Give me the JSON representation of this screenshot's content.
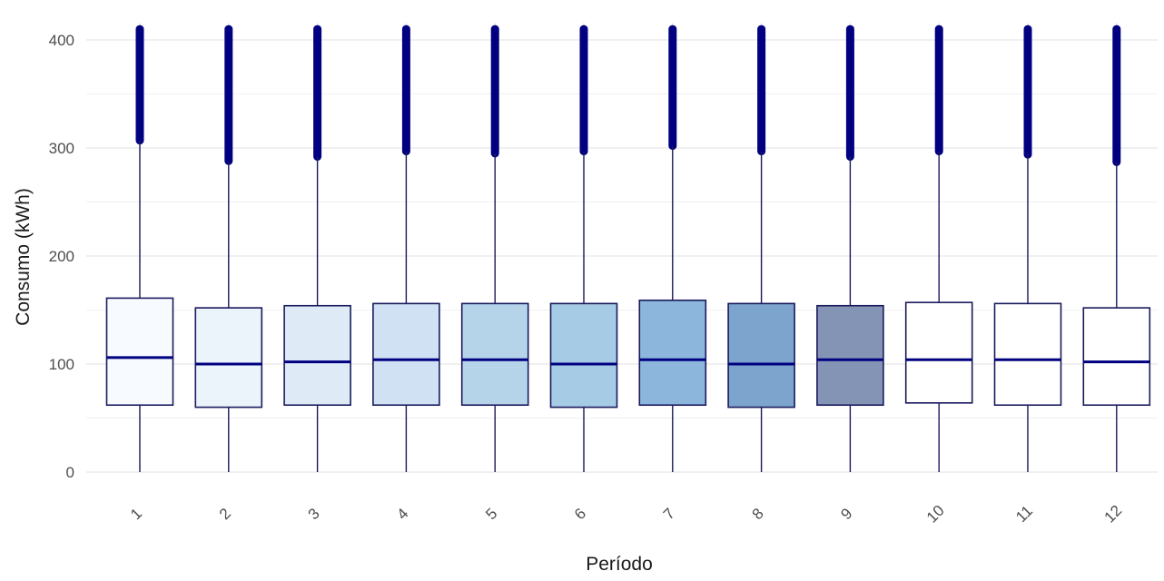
{
  "chart_data": {
    "type": "boxplot",
    "title": "",
    "xlabel": "Período",
    "ylabel": "Consumo (kWh)",
    "ylim": [
      0,
      415
    ],
    "yticks": [
      0,
      100,
      200,
      300,
      400
    ],
    "grid": true,
    "legend": "none",
    "colors": {
      "whisker": "#1a1a5e",
      "median": "#000080",
      "outlier": "#000080",
      "box_border": "#1a1a5e",
      "grid": "#ebebeb"
    },
    "categories": [
      "1",
      "2",
      "3",
      "4",
      "5",
      "6",
      "7",
      "8",
      "9",
      "10",
      "11",
      "12"
    ],
    "boxes": [
      {
        "x": "1",
        "min": 0,
        "q1": 62,
        "median": 106,
        "q3": 161,
        "whisker_high": 307,
        "outlier_max": 410,
        "fill": "#f7fbff"
      },
      {
        "x": "2",
        "min": 0,
        "q1": 60,
        "median": 100,
        "q3": 152,
        "whisker_high": 288,
        "outlier_max": 410,
        "fill": "#ebf3fb"
      },
      {
        "x": "3",
        "min": 0,
        "q1": 62,
        "median": 102,
        "q3": 154,
        "whisker_high": 292,
        "outlier_max": 410,
        "fill": "#deebf7"
      },
      {
        "x": "4",
        "min": 0,
        "q1": 62,
        "median": 104,
        "q3": 156,
        "whisker_high": 297,
        "outlier_max": 410,
        "fill": "#cfe1f2"
      },
      {
        "x": "5",
        "min": 0,
        "q1": 62,
        "median": 104,
        "q3": 156,
        "whisker_high": 295,
        "outlier_max": 410,
        "fill": "#b5d4ea"
      },
      {
        "x": "6",
        "min": 0,
        "q1": 60,
        "median": 100,
        "q3": 156,
        "whisker_high": 297,
        "outlier_max": 410,
        "fill": "#a6cbe4"
      },
      {
        "x": "7",
        "min": 0,
        "q1": 62,
        "median": 104,
        "q3": 159,
        "whisker_high": 302,
        "outlier_max": 410,
        "fill": "#8db6dc"
      },
      {
        "x": "8",
        "min": 0,
        "q1": 60,
        "median": 100,
        "q3": 156,
        "whisker_high": 297,
        "outlier_max": 410,
        "fill": "#7ca4cd"
      },
      {
        "x": "9",
        "min": 0,
        "q1": 62,
        "median": 104,
        "q3": 154,
        "whisker_high": 292,
        "outlier_max": 410,
        "fill": "#8494b4"
      },
      {
        "x": "10",
        "min": 0,
        "q1": 64,
        "median": 104,
        "q3": 157,
        "whisker_high": 297,
        "outlier_max": 410,
        "fill": "#ffffff"
      },
      {
        "x": "11",
        "min": 0,
        "q1": 62,
        "median": 104,
        "q3": 156,
        "whisker_high": 294,
        "outlier_max": 410,
        "fill": "#ffffff"
      },
      {
        "x": "12",
        "min": 0,
        "q1": 62,
        "median": 102,
        "q3": 152,
        "whisker_high": 287,
        "outlier_max": 410,
        "fill": "#ffffff"
      }
    ]
  }
}
